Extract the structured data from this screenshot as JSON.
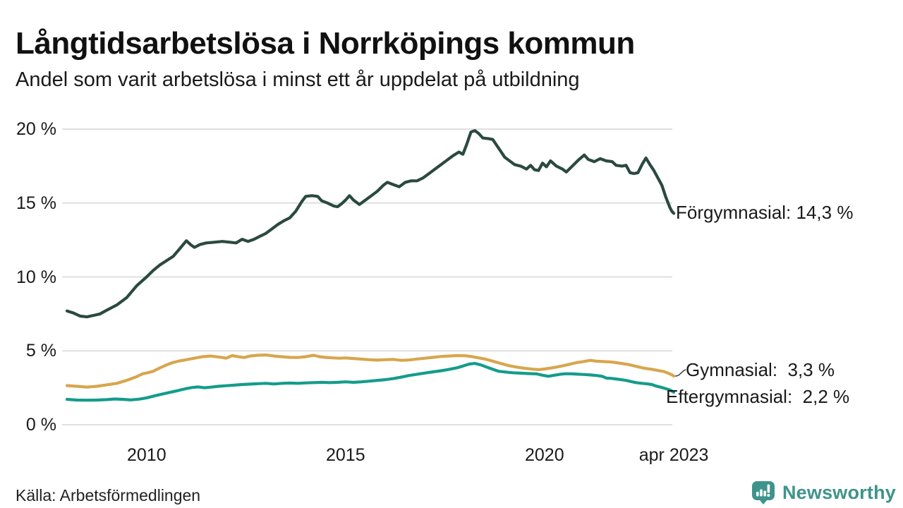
{
  "page": {
    "title": "Långtidsarbetslösa i Norrköpings kommun",
    "subtitle": "Andel som varit arbetslösa i minst ett år uppdelat på utbildning",
    "source": "Källa: Arbetsförmedlingen"
  },
  "logo": {
    "name": "Newsworthy",
    "icon": "bar-chart-speech-bubble-icon",
    "color": "#3e948c"
  },
  "colors": {
    "forgymnasial_line": "#2a4941",
    "gymnasial_line": "#d7a64d",
    "eftergymnasial_line": "#149c8b",
    "gridline": "#e0e0e0",
    "text": "#1a1a1a"
  },
  "chart_data": {
    "type": "line",
    "title": "Långtidsarbetslösa i Norrköpings kommun",
    "subtitle": "Andel som varit arbetslösa i minst ett år uppdelat på utbildning",
    "grid": true,
    "legend_position": "end-of-line-labels",
    "x_axis": {
      "range": [
        2008.0,
        2023.25
      ],
      "ticks": [
        {
          "label": "2010",
          "year": 2010
        },
        {
          "label": "2015",
          "year": 2015
        },
        {
          "label": "2020",
          "year": 2020
        },
        {
          "label": "apr 2023",
          "year": 2023.25
        }
      ]
    },
    "y_axis": {
      "unit": "%",
      "range": [
        0,
        20
      ],
      "ticks": [
        {
          "label": "20 %",
          "value": 20
        },
        {
          "label": "15 %",
          "value": 15
        },
        {
          "label": "10 %",
          "value": 10
        },
        {
          "label": "5 %",
          "value": 5
        },
        {
          "label": "0 %",
          "value": 0
        }
      ]
    },
    "series": [
      {
        "id": "forgymnasial",
        "name": "Förgymnasial",
        "color": "#2a4941",
        "final_value": 14.3,
        "final_label": "Förgymnasial: 14,3 %",
        "points": [
          [
            2008.0,
            7.7
          ],
          [
            2008.17,
            7.55
          ],
          [
            2008.33,
            7.35
          ],
          [
            2008.5,
            7.3
          ],
          [
            2008.67,
            7.4
          ],
          [
            2008.83,
            7.5
          ],
          [
            2009.0,
            7.75
          ],
          [
            2009.25,
            8.1
          ],
          [
            2009.5,
            8.6
          ],
          [
            2009.75,
            9.4
          ],
          [
            2010.0,
            10.0
          ],
          [
            2010.17,
            10.45
          ],
          [
            2010.33,
            10.8
          ],
          [
            2010.5,
            11.1
          ],
          [
            2010.67,
            11.4
          ],
          [
            2010.83,
            11.9
          ],
          [
            2011.0,
            12.45
          ],
          [
            2011.1,
            12.2
          ],
          [
            2011.2,
            12.0
          ],
          [
            2011.35,
            12.2
          ],
          [
            2011.5,
            12.3
          ],
          [
            2011.7,
            12.35
          ],
          [
            2011.9,
            12.4
          ],
          [
            2012.1,
            12.35
          ],
          [
            2012.25,
            12.3
          ],
          [
            2012.4,
            12.55
          ],
          [
            2012.55,
            12.4
          ],
          [
            2012.7,
            12.55
          ],
          [
            2012.85,
            12.75
          ],
          [
            2013.0,
            12.95
          ],
          [
            2013.15,
            13.25
          ],
          [
            2013.3,
            13.55
          ],
          [
            2013.45,
            13.8
          ],
          [
            2013.6,
            14.0
          ],
          [
            2013.75,
            14.45
          ],
          [
            2013.9,
            15.1
          ],
          [
            2014.0,
            15.45
          ],
          [
            2014.15,
            15.5
          ],
          [
            2014.3,
            15.45
          ],
          [
            2014.4,
            15.15
          ],
          [
            2014.55,
            15.0
          ],
          [
            2014.7,
            14.8
          ],
          [
            2014.8,
            14.75
          ],
          [
            2014.9,
            14.95
          ],
          [
            2015.0,
            15.2
          ],
          [
            2015.1,
            15.5
          ],
          [
            2015.2,
            15.2
          ],
          [
            2015.35,
            14.9
          ],
          [
            2015.5,
            15.2
          ],
          [
            2015.65,
            15.5
          ],
          [
            2015.8,
            15.8
          ],
          [
            2015.95,
            16.2
          ],
          [
            2016.05,
            16.4
          ],
          [
            2016.2,
            16.25
          ],
          [
            2016.35,
            16.1
          ],
          [
            2016.5,
            16.4
          ],
          [
            2016.65,
            16.5
          ],
          [
            2016.8,
            16.5
          ],
          [
            2016.95,
            16.7
          ],
          [
            2017.1,
            17.0
          ],
          [
            2017.25,
            17.3
          ],
          [
            2017.4,
            17.6
          ],
          [
            2017.55,
            17.9
          ],
          [
            2017.7,
            18.2
          ],
          [
            2017.85,
            18.45
          ],
          [
            2017.95,
            18.3
          ],
          [
            2018.05,
            19.0
          ],
          [
            2018.15,
            19.8
          ],
          [
            2018.25,
            19.9
          ],
          [
            2018.35,
            19.7
          ],
          [
            2018.45,
            19.4
          ],
          [
            2018.6,
            19.35
          ],
          [
            2018.7,
            19.3
          ],
          [
            2018.8,
            18.9
          ],
          [
            2018.9,
            18.5
          ],
          [
            2019.0,
            18.1
          ],
          [
            2019.1,
            17.9
          ],
          [
            2019.25,
            17.6
          ],
          [
            2019.4,
            17.5
          ],
          [
            2019.55,
            17.3
          ],
          [
            2019.65,
            17.55
          ],
          [
            2019.75,
            17.25
          ],
          [
            2019.85,
            17.2
          ],
          [
            2019.95,
            17.7
          ],
          [
            2020.05,
            17.45
          ],
          [
            2020.15,
            17.85
          ],
          [
            2020.3,
            17.5
          ],
          [
            2020.45,
            17.3
          ],
          [
            2020.55,
            17.1
          ],
          [
            2020.7,
            17.5
          ],
          [
            2020.85,
            17.9
          ],
          [
            2021.0,
            18.25
          ],
          [
            2021.1,
            17.95
          ],
          [
            2021.25,
            17.8
          ],
          [
            2021.4,
            18.0
          ],
          [
            2021.55,
            17.85
          ],
          [
            2021.7,
            17.8
          ],
          [
            2021.8,
            17.55
          ],
          [
            2021.95,
            17.5
          ],
          [
            2022.05,
            17.55
          ],
          [
            2022.15,
            17.05
          ],
          [
            2022.25,
            17.0
          ],
          [
            2022.35,
            17.05
          ],
          [
            2022.45,
            17.6
          ],
          [
            2022.55,
            18.05
          ],
          [
            2022.65,
            17.6
          ],
          [
            2022.75,
            17.2
          ],
          [
            2022.85,
            16.7
          ],
          [
            2022.95,
            16.2
          ],
          [
            2023.05,
            15.4
          ],
          [
            2023.15,
            14.7
          ],
          [
            2023.2,
            14.45
          ],
          [
            2023.25,
            14.3
          ]
        ]
      },
      {
        "id": "gymnasial",
        "name": "Gymnasial",
        "color": "#d7a64d",
        "final_value": 3.3,
        "final_label": "Gymnasial:  3,3 %",
        "points": [
          [
            2008.0,
            2.65
          ],
          [
            2008.25,
            2.6
          ],
          [
            2008.5,
            2.55
          ],
          [
            2008.75,
            2.6
          ],
          [
            2009.0,
            2.7
          ],
          [
            2009.25,
            2.8
          ],
          [
            2009.5,
            3.0
          ],
          [
            2009.75,
            3.25
          ],
          [
            2009.9,
            3.45
          ],
          [
            2010.0,
            3.5
          ],
          [
            2010.15,
            3.6
          ],
          [
            2010.3,
            3.8
          ],
          [
            2010.5,
            4.05
          ],
          [
            2010.65,
            4.2
          ],
          [
            2010.8,
            4.3
          ],
          [
            2011.0,
            4.4
          ],
          [
            2011.2,
            4.5
          ],
          [
            2011.4,
            4.6
          ],
          [
            2011.6,
            4.65
          ],
          [
            2011.75,
            4.6
          ],
          [
            2011.9,
            4.55
          ],
          [
            2012.0,
            4.5
          ],
          [
            2012.15,
            4.68
          ],
          [
            2012.3,
            4.6
          ],
          [
            2012.45,
            4.55
          ],
          [
            2012.6,
            4.65
          ],
          [
            2012.8,
            4.7
          ],
          [
            2013.0,
            4.72
          ],
          [
            2013.2,
            4.65
          ],
          [
            2013.4,
            4.6
          ],
          [
            2013.6,
            4.56
          ],
          [
            2013.8,
            4.55
          ],
          [
            2014.0,
            4.6
          ],
          [
            2014.2,
            4.7
          ],
          [
            2014.35,
            4.6
          ],
          [
            2014.5,
            4.56
          ],
          [
            2014.7,
            4.52
          ],
          [
            2014.85,
            4.5
          ],
          [
            2015.0,
            4.52
          ],
          [
            2015.2,
            4.48
          ],
          [
            2015.4,
            4.44
          ],
          [
            2015.6,
            4.4
          ],
          [
            2015.8,
            4.37
          ],
          [
            2016.0,
            4.4
          ],
          [
            2016.2,
            4.42
          ],
          [
            2016.4,
            4.36
          ],
          [
            2016.6,
            4.38
          ],
          [
            2016.8,
            4.45
          ],
          [
            2017.0,
            4.5
          ],
          [
            2017.2,
            4.56
          ],
          [
            2017.4,
            4.62
          ],
          [
            2017.6,
            4.65
          ],
          [
            2017.8,
            4.68
          ],
          [
            2018.0,
            4.67
          ],
          [
            2018.15,
            4.62
          ],
          [
            2018.3,
            4.55
          ],
          [
            2018.5,
            4.45
          ],
          [
            2018.7,
            4.3
          ],
          [
            2018.9,
            4.15
          ],
          [
            2019.1,
            4.0
          ],
          [
            2019.3,
            3.9
          ],
          [
            2019.5,
            3.82
          ],
          [
            2019.7,
            3.76
          ],
          [
            2019.85,
            3.73
          ],
          [
            2020.0,
            3.77
          ],
          [
            2020.2,
            3.85
          ],
          [
            2020.4,
            3.95
          ],
          [
            2020.6,
            4.07
          ],
          [
            2020.8,
            4.2
          ],
          [
            2021.0,
            4.28
          ],
          [
            2021.15,
            4.36
          ],
          [
            2021.3,
            4.3
          ],
          [
            2021.5,
            4.27
          ],
          [
            2021.7,
            4.24
          ],
          [
            2021.9,
            4.16
          ],
          [
            2022.1,
            4.08
          ],
          [
            2022.3,
            3.95
          ],
          [
            2022.5,
            3.83
          ],
          [
            2022.7,
            3.75
          ],
          [
            2022.85,
            3.67
          ],
          [
            2023.0,
            3.6
          ],
          [
            2023.1,
            3.5
          ],
          [
            2023.2,
            3.38
          ],
          [
            2023.25,
            3.3
          ]
        ]
      },
      {
        "id": "eftergymnasial",
        "name": "Eftergymnasial",
        "color": "#149c8b",
        "final_value": 2.2,
        "final_label": "Eftergymnasial:  2,2 %",
        "points": [
          [
            2008.0,
            1.72
          ],
          [
            2008.25,
            1.67
          ],
          [
            2008.5,
            1.66
          ],
          [
            2008.75,
            1.67
          ],
          [
            2009.0,
            1.7
          ],
          [
            2009.2,
            1.74
          ],
          [
            2009.4,
            1.72
          ],
          [
            2009.6,
            1.68
          ],
          [
            2009.8,
            1.73
          ],
          [
            2010.0,
            1.82
          ],
          [
            2010.2,
            1.95
          ],
          [
            2010.4,
            2.08
          ],
          [
            2010.6,
            2.2
          ],
          [
            2010.8,
            2.32
          ],
          [
            2011.0,
            2.45
          ],
          [
            2011.15,
            2.52
          ],
          [
            2011.3,
            2.56
          ],
          [
            2011.45,
            2.5
          ],
          [
            2011.6,
            2.54
          ],
          [
            2011.8,
            2.6
          ],
          [
            2012.0,
            2.64
          ],
          [
            2012.2,
            2.68
          ],
          [
            2012.4,
            2.72
          ],
          [
            2012.6,
            2.75
          ],
          [
            2012.8,
            2.78
          ],
          [
            2013.0,
            2.8
          ],
          [
            2013.2,
            2.76
          ],
          [
            2013.4,
            2.8
          ],
          [
            2013.6,
            2.82
          ],
          [
            2013.8,
            2.8
          ],
          [
            2014.0,
            2.83
          ],
          [
            2014.2,
            2.85
          ],
          [
            2014.4,
            2.87
          ],
          [
            2014.6,
            2.85
          ],
          [
            2014.8,
            2.87
          ],
          [
            2015.0,
            2.9
          ],
          [
            2015.2,
            2.87
          ],
          [
            2015.4,
            2.9
          ],
          [
            2015.6,
            2.95
          ],
          [
            2015.8,
            3.0
          ],
          [
            2016.0,
            3.05
          ],
          [
            2016.2,
            3.12
          ],
          [
            2016.4,
            3.22
          ],
          [
            2016.6,
            3.33
          ],
          [
            2016.8,
            3.42
          ],
          [
            2017.0,
            3.5
          ],
          [
            2017.2,
            3.58
          ],
          [
            2017.4,
            3.65
          ],
          [
            2017.6,
            3.74
          ],
          [
            2017.8,
            3.85
          ],
          [
            2017.95,
            3.97
          ],
          [
            2018.1,
            4.1
          ],
          [
            2018.25,
            4.15
          ],
          [
            2018.4,
            4.05
          ],
          [
            2018.55,
            3.9
          ],
          [
            2018.7,
            3.75
          ],
          [
            2018.85,
            3.62
          ],
          [
            2019.0,
            3.57
          ],
          [
            2019.2,
            3.52
          ],
          [
            2019.4,
            3.49
          ],
          [
            2019.6,
            3.46
          ],
          [
            2019.8,
            3.44
          ],
          [
            2019.95,
            3.35
          ],
          [
            2020.1,
            3.28
          ],
          [
            2020.25,
            3.35
          ],
          [
            2020.4,
            3.42
          ],
          [
            2020.55,
            3.45
          ],
          [
            2020.7,
            3.44
          ],
          [
            2020.85,
            3.42
          ],
          [
            2021.0,
            3.4
          ],
          [
            2021.15,
            3.37
          ],
          [
            2021.3,
            3.33
          ],
          [
            2021.45,
            3.28
          ],
          [
            2021.55,
            3.16
          ],
          [
            2021.7,
            3.13
          ],
          [
            2021.85,
            3.08
          ],
          [
            2022.0,
            3.02
          ],
          [
            2022.15,
            2.94
          ],
          [
            2022.3,
            2.85
          ],
          [
            2022.45,
            2.8
          ],
          [
            2022.6,
            2.76
          ],
          [
            2022.7,
            2.72
          ],
          [
            2022.8,
            2.62
          ],
          [
            2022.95,
            2.52
          ],
          [
            2023.05,
            2.44
          ],
          [
            2023.15,
            2.36
          ],
          [
            2023.25,
            2.2
          ]
        ]
      }
    ]
  }
}
